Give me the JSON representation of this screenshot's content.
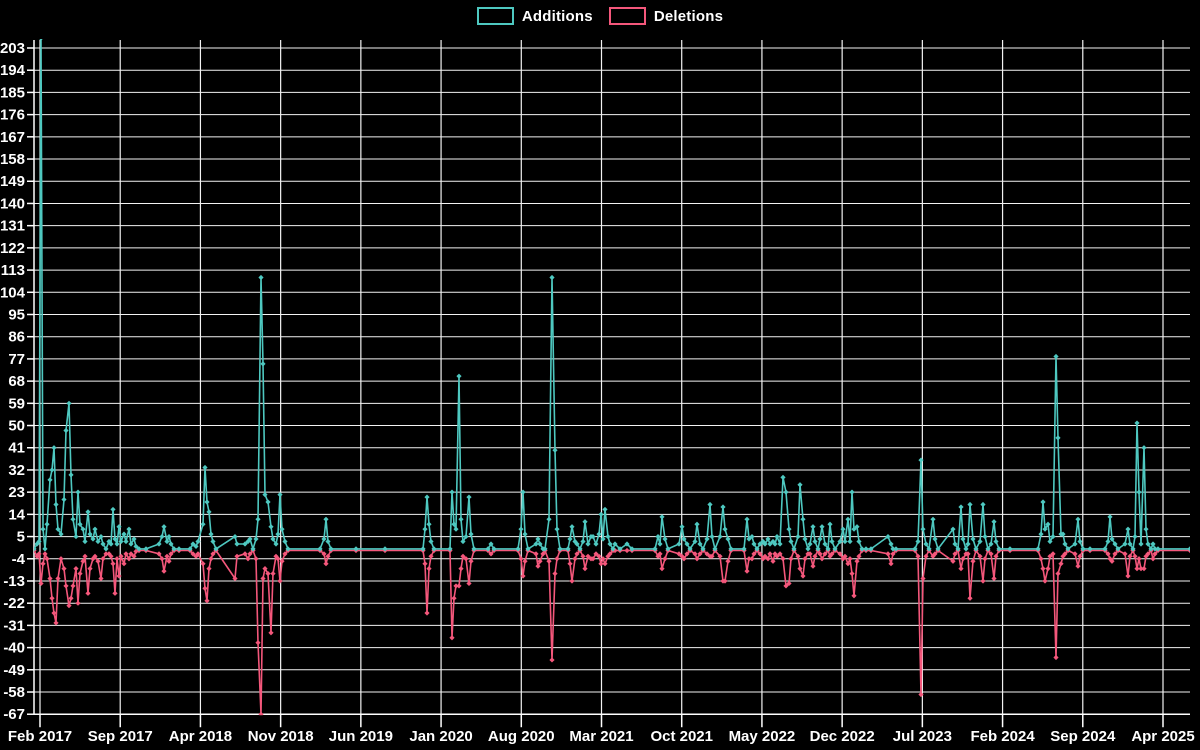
{
  "legend": {
    "additions_label": "Additions",
    "deletions_label": "Deletions"
  },
  "colors": {
    "background": "#000000",
    "grid": "#f2f2f2",
    "axis": "#ffffff",
    "text": "#ffffff",
    "additions": "#4ec8c0",
    "deletions": "#f4577b"
  },
  "chart_data": {
    "type": "line",
    "title": "",
    "legend_position": "top-center",
    "grid": "on",
    "series_names": [
      "Additions",
      "Deletions"
    ],
    "y_axis": {
      "min": -67,
      "max": 203,
      "tick_step": 9,
      "tick_labels": [
        "203",
        "194",
        "185",
        "176",
        "167",
        "158",
        "149",
        "140",
        "131",
        "122",
        "113",
        "104",
        "95",
        "86",
        "77",
        "68",
        "59",
        "50",
        "41",
        "32",
        "23",
        "14",
        "5",
        "-4",
        "-13",
        "-22",
        "-31",
        "-40",
        "-49",
        "-58",
        "-67"
      ]
    },
    "x_axis": {
      "tick_labels": [
        "Feb 2017",
        "Sep 2017",
        "Apr 2018",
        "Nov 2018",
        "Jun 2019",
        "Jan 2020",
        "Aug 2020",
        "Mar 2021",
        "Oct 2021",
        "May 2022",
        "Dec 2022",
        "Jul 2023",
        "Feb 2024",
        "Sep 2024",
        "Apr 2025"
      ],
      "months_per_tick": 7,
      "timeline_units_total": 1123,
      "note": "t = timeline position, 0 at Feb 2017 tick, 1123 at Apr 2025 tick; first addition spike exceeds axis max (clipped at plot top)"
    },
    "points_format": [
      "t",
      "additions",
      "deletions"
    ],
    "points": [
      [
        -6,
        0,
        0
      ],
      [
        -3,
        2,
        -3
      ],
      [
        -1,
        3,
        -2
      ],
      [
        1,
        207,
        -14
      ],
      [
        3,
        8,
        -6
      ],
      [
        5,
        0,
        -2
      ],
      [
        7,
        10,
        -4
      ],
      [
        10,
        28,
        -12
      ],
      [
        12,
        32,
        -20
      ],
      [
        14,
        41,
        -26
      ],
      [
        16,
        18,
        -30
      ],
      [
        18,
        8,
        -12
      ],
      [
        21,
        6,
        -4
      ],
      [
        24,
        20,
        -8
      ],
      [
        26,
        48,
        -15
      ],
      [
        29,
        59,
        -23
      ],
      [
        31,
        30,
        -20
      ],
      [
        33,
        12,
        -15
      ],
      [
        36,
        5,
        -8
      ],
      [
        38,
        23,
        -22
      ],
      [
        40,
        10,
        -10
      ],
      [
        43,
        8,
        -5
      ],
      [
        45,
        3,
        -3
      ],
      [
        48,
        15,
        -18
      ],
      [
        50,
        6,
        -8
      ],
      [
        53,
        4,
        -4
      ],
      [
        55,
        8,
        -3
      ],
      [
        58,
        3,
        -5
      ],
      [
        61,
        5,
        -12
      ],
      [
        63,
        2,
        -4
      ],
      [
        66,
        0,
        -2
      ],
      [
        69,
        3,
        -2
      ],
      [
        71,
        2,
        -3
      ],
      [
        73,
        16,
        -6
      ],
      [
        75,
        4,
        -18
      ],
      [
        77,
        2,
        -4
      ],
      [
        79,
        9,
        -11
      ],
      [
        81,
        3,
        -3
      ],
      [
        84,
        6,
        -6
      ],
      [
        86,
        3,
        -2
      ],
      [
        89,
        8,
        -4
      ],
      [
        91,
        2,
        -2
      ],
      [
        94,
        4,
        -3
      ],
      [
        96,
        1,
        -1
      ],
      [
        99,
        0,
        0
      ],
      [
        106,
        0,
        0
      ],
      [
        119,
        2,
        -2
      ],
      [
        122,
        5,
        -4
      ],
      [
        124,
        9,
        -9
      ],
      [
        127,
        3,
        -3
      ],
      [
        129,
        5,
        -5
      ],
      [
        131,
        2,
        -2
      ],
      [
        134,
        0,
        0
      ],
      [
        139,
        0,
        0
      ],
      [
        150,
        0,
        0
      ],
      [
        153,
        2,
        -2
      ],
      [
        156,
        1,
        -3
      ],
      [
        158,
        3,
        -2
      ],
      [
        163,
        10,
        -6
      ],
      [
        165,
        33,
        -16
      ],
      [
        167,
        19,
        -21
      ],
      [
        169,
        15,
        -8
      ],
      [
        171,
        6,
        -4
      ],
      [
        173,
        3,
        -2
      ],
      [
        176,
        0,
        0
      ],
      [
        195,
        5,
        -12
      ],
      [
        197,
        2,
        -3
      ],
      [
        205,
        2,
        -2
      ],
      [
        208,
        3,
        -4
      ],
      [
        210,
        4,
        -2
      ],
      [
        213,
        0,
        0
      ],
      [
        216,
        4,
        -4
      ],
      [
        218,
        12,
        -38
      ],
      [
        221,
        110,
        -67
      ],
      [
        223,
        75,
        -12
      ],
      [
        225,
        22,
        -8
      ],
      [
        228,
        19,
        -10
      ],
      [
        231,
        9,
        -34
      ],
      [
        233,
        4,
        -10
      ],
      [
        236,
        2,
        -3
      ],
      [
        238,
        6,
        -4
      ],
      [
        240,
        22,
        -13
      ],
      [
        242,
        8,
        -5
      ],
      [
        245,
        3,
        -2
      ],
      [
        248,
        0,
        0
      ],
      [
        280,
        0,
        0
      ],
      [
        284,
        4,
        -2
      ],
      [
        286,
        12,
        -6
      ],
      [
        288,
        3,
        -3
      ],
      [
        291,
        0,
        0
      ],
      [
        316,
        0,
        0
      ],
      [
        345,
        0,
        0
      ],
      [
        383,
        0,
        0
      ],
      [
        385,
        8,
        -6
      ],
      [
        387,
        21,
        -26
      ],
      [
        389,
        10,
        -8
      ],
      [
        391,
        3,
        -3
      ],
      [
        394,
        0,
        0
      ],
      [
        410,
        0,
        0
      ],
      [
        412,
        23,
        -36
      ],
      [
        414,
        10,
        -20
      ],
      [
        416,
        8,
        -15
      ],
      [
        419,
        70,
        -15
      ],
      [
        421,
        12,
        -8
      ],
      [
        423,
        3,
        -3
      ],
      [
        426,
        5,
        -4
      ],
      [
        429,
        21,
        -14
      ],
      [
        431,
        6,
        -5
      ],
      [
        434,
        0,
        0
      ],
      [
        448,
        0,
        0
      ],
      [
        451,
        2,
        -2
      ],
      [
        454,
        0,
        0
      ],
      [
        478,
        0,
        0
      ],
      [
        481,
        8,
        -4
      ],
      [
        483,
        23,
        -11
      ],
      [
        485,
        6,
        -5
      ],
      [
        488,
        0,
        0
      ],
      [
        496,
        2,
        -2
      ],
      [
        498,
        4,
        -7
      ],
      [
        500,
        2,
        -5
      ],
      [
        503,
        0,
        -2
      ],
      [
        505,
        0,
        0
      ],
      [
        509,
        12,
        -5
      ],
      [
        512,
        110,
        -45
      ],
      [
        515,
        40,
        -10
      ],
      [
        517,
        8,
        -4
      ],
      [
        520,
        0,
        0
      ],
      [
        528,
        0,
        0
      ],
      [
        530,
        4,
        -6
      ],
      [
        532,
        9,
        -13
      ],
      [
        535,
        3,
        -4
      ],
      [
        537,
        2,
        -2
      ],
      [
        540,
        0,
        0
      ],
      [
        543,
        3,
        -3
      ],
      [
        545,
        11,
        -8
      ],
      [
        548,
        2,
        -3
      ],
      [
        551,
        5,
        -4
      ],
      [
        553,
        5,
        -4
      ],
      [
        556,
        2,
        -2
      ],
      [
        559,
        6,
        -3
      ],
      [
        561,
        14,
        -6
      ],
      [
        563,
        4,
        -4
      ],
      [
        565,
        16,
        -6
      ],
      [
        568,
        5,
        -3
      ],
      [
        570,
        2,
        -2
      ],
      [
        573,
        0,
        0
      ],
      [
        575,
        2,
        0
      ],
      [
        580,
        0,
        0
      ],
      [
        587,
        2,
        0
      ],
      [
        592,
        0,
        0
      ],
      [
        615,
        0,
        0
      ],
      [
        618,
        5,
        -3
      ],
      [
        620,
        2,
        -2
      ],
      [
        622,
        13,
        -8
      ],
      [
        625,
        4,
        -4
      ],
      [
        628,
        0,
        0
      ],
      [
        639,
        2,
        -2
      ],
      [
        642,
        9,
        -3
      ],
      [
        644,
        4,
        -4
      ],
      [
        647,
        2,
        -2
      ],
      [
        650,
        0,
        0
      ],
      [
        655,
        3,
        -2
      ],
      [
        657,
        10,
        -4
      ],
      [
        660,
        2,
        -2
      ],
      [
        663,
        0,
        0
      ],
      [
        667,
        4,
        -2
      ],
      [
        670,
        18,
        -3
      ],
      [
        672,
        5,
        -3
      ],
      [
        675,
        0,
        0
      ],
      [
        680,
        5,
        -3
      ],
      [
        683,
        17,
        -13
      ],
      [
        685,
        8,
        -13
      ],
      [
        688,
        4,
        -5
      ],
      [
        691,
        0,
        0
      ],
      [
        704,
        0,
        0
      ],
      [
        707,
        12,
        -9
      ],
      [
        709,
        4,
        -4
      ],
      [
        712,
        5,
        -4
      ],
      [
        714,
        2,
        -2
      ],
      [
        717,
        0,
        0
      ],
      [
        720,
        2,
        -2
      ],
      [
        723,
        3,
        -4
      ],
      [
        725,
        2,
        -3
      ],
      [
        728,
        4,
        -4
      ],
      [
        730,
        2,
        -2
      ],
      [
        733,
        3,
        -5
      ],
      [
        735,
        2,
        -2
      ],
      [
        737,
        5,
        -3
      ],
      [
        740,
        2,
        -2
      ],
      [
        743,
        29,
        -4
      ],
      [
        746,
        23,
        -15
      ],
      [
        749,
        8,
        -14
      ],
      [
        751,
        3,
        -4
      ],
      [
        754,
        0,
        0
      ],
      [
        758,
        5,
        -3
      ],
      [
        760,
        26,
        -8
      ],
      [
        763,
        12,
        -11
      ],
      [
        765,
        4,
        -4
      ],
      [
        768,
        0,
        -2
      ],
      [
        770,
        2,
        -2
      ],
      [
        773,
        9,
        -7
      ],
      [
        775,
        3,
        -3
      ],
      [
        778,
        0,
        0
      ],
      [
        780,
        4,
        -2
      ],
      [
        782,
        9,
        -4
      ],
      [
        785,
        2,
        -2
      ],
      [
        788,
        0,
        0
      ],
      [
        790,
        10,
        -3
      ],
      [
        792,
        3,
        -2
      ],
      [
        795,
        0,
        0
      ],
      [
        800,
        3,
        -2
      ],
      [
        803,
        8,
        -4
      ],
      [
        805,
        3,
        -3
      ],
      [
        808,
        12,
        -6
      ],
      [
        810,
        3,
        -4
      ],
      [
        812,
        23,
        -10
      ],
      [
        814,
        8,
        -19
      ],
      [
        817,
        9,
        -5
      ],
      [
        819,
        3,
        -3
      ],
      [
        822,
        0,
        0
      ],
      [
        826,
        0,
        0
      ],
      [
        831,
        0,
        0
      ],
      [
        848,
        5,
        -2
      ],
      [
        851,
        2,
        -6
      ],
      [
        853,
        0,
        -2
      ],
      [
        856,
        0,
        0
      ],
      [
        875,
        0,
        0
      ],
      [
        878,
        3,
        -3
      ],
      [
        881,
        36,
        -59
      ],
      [
        883,
        8,
        -12
      ],
      [
        886,
        2,
        -3
      ],
      [
        889,
        0,
        0
      ],
      [
        893,
        12,
        -3
      ],
      [
        895,
        4,
        -2
      ],
      [
        898,
        0,
        0
      ],
      [
        913,
        8,
        -5
      ],
      [
        915,
        2,
        -2
      ],
      [
        918,
        0,
        0
      ],
      [
        921,
        17,
        -8
      ],
      [
        923,
        4,
        -4
      ],
      [
        926,
        0,
        -2
      ],
      [
        928,
        2,
        -2
      ],
      [
        930,
        18,
        -20
      ],
      [
        933,
        4,
        -5
      ],
      [
        936,
        0,
        0
      ],
      [
        940,
        3,
        -3
      ],
      [
        943,
        18,
        -13
      ],
      [
        945,
        5,
        -4
      ],
      [
        948,
        0,
        0
      ],
      [
        951,
        2,
        -2
      ],
      [
        954,
        11,
        -12
      ],
      [
        956,
        3,
        -3
      ],
      [
        959,
        0,
        0
      ],
      [
        970,
        0,
        0
      ],
      [
        998,
        0,
        0
      ],
      [
        1001,
        6,
        -4
      ],
      [
        1003,
        19,
        -8
      ],
      [
        1005,
        8,
        -13
      ],
      [
        1008,
        10,
        -8
      ],
      [
        1010,
        3,
        -3
      ],
      [
        1013,
        5,
        -2
      ],
      [
        1016,
        78,
        -44
      ],
      [
        1018,
        45,
        -10
      ],
      [
        1021,
        6,
        -6
      ],
      [
        1023,
        6,
        -3
      ],
      [
        1025,
        2,
        -2
      ],
      [
        1028,
        0,
        0
      ],
      [
        1035,
        2,
        -2
      ],
      [
        1038,
        12,
        -7
      ],
      [
        1040,
        3,
        -3
      ],
      [
        1043,
        0,
        0
      ],
      [
        1050,
        0,
        0
      ],
      [
        1065,
        0,
        0
      ],
      [
        1068,
        3,
        -2
      ],
      [
        1070,
        13,
        -4
      ],
      [
        1072,
        4,
        -5
      ],
      [
        1075,
        2,
        -2
      ],
      [
        1078,
        0,
        0
      ],
      [
        1085,
        2,
        -2
      ],
      [
        1088,
        8,
        -11
      ],
      [
        1090,
        2,
        -3
      ],
      [
        1093,
        0,
        0
      ],
      [
        1095,
        5,
        -3
      ],
      [
        1097,
        51,
        -8
      ],
      [
        1099,
        23,
        -4
      ],
      [
        1101,
        2,
        -8
      ],
      [
        1104,
        41,
        -8
      ],
      [
        1106,
        8,
        -3
      ],
      [
        1108,
        2,
        -2
      ],
      [
        1111,
        0,
        0
      ],
      [
        1113,
        2,
        -4
      ],
      [
        1115,
        0,
        -2
      ],
      [
        1118,
        0,
        0
      ],
      [
        1150,
        0,
        0
      ]
    ]
  }
}
